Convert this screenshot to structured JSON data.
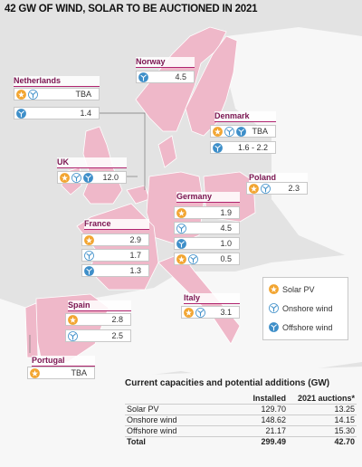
{
  "title": "42 GW OF WIND, SOLAR TO BE AUCTIONED IN 2021",
  "countries": [
    {
      "name": "Netherlands",
      "rows": [
        "TBA",
        "1.4"
      ]
    },
    {
      "name": "Norway",
      "rows": [
        "4.5"
      ]
    },
    {
      "name": "Denmark",
      "rows": [
        "TBA",
        "1.6 - 2.2"
      ]
    },
    {
      "name": "UK",
      "rows": [
        "12.0"
      ]
    },
    {
      "name": "Poland",
      "rows": [
        "2.3"
      ]
    },
    {
      "name": "Germany",
      "rows": [
        "1.9",
        "4.5",
        "1.0",
        "0.5"
      ]
    },
    {
      "name": "France",
      "rows": [
        "2.9",
        "1.7",
        "1.3"
      ]
    },
    {
      "name": "Italy",
      "rows": [
        "3.1"
      ]
    },
    {
      "name": "Spain",
      "rows": [
        "2.8",
        "2.5"
      ]
    },
    {
      "name": "Portugal",
      "rows": [
        "TBA"
      ]
    }
  ],
  "legend": [
    "Solar PV",
    "Onshore wind",
    "Offshore wind"
  ],
  "table": {
    "title": "Current capacities and potential additions (GW)",
    "columns": [
      "Installed",
      "2021 auctions*"
    ],
    "rows": [
      {
        "label": "Solar PV",
        "values": [
          "129.70",
          "13.25"
        ]
      },
      {
        "label": "Onshore wind",
        "values": [
          "148.62",
          "14.15"
        ]
      },
      {
        "label": "Offshore wind",
        "values": [
          "21.17",
          "15.30"
        ]
      },
      {
        "label": "Total",
        "values": [
          "299.49",
          "42.70"
        ]
      }
    ]
  }
}
